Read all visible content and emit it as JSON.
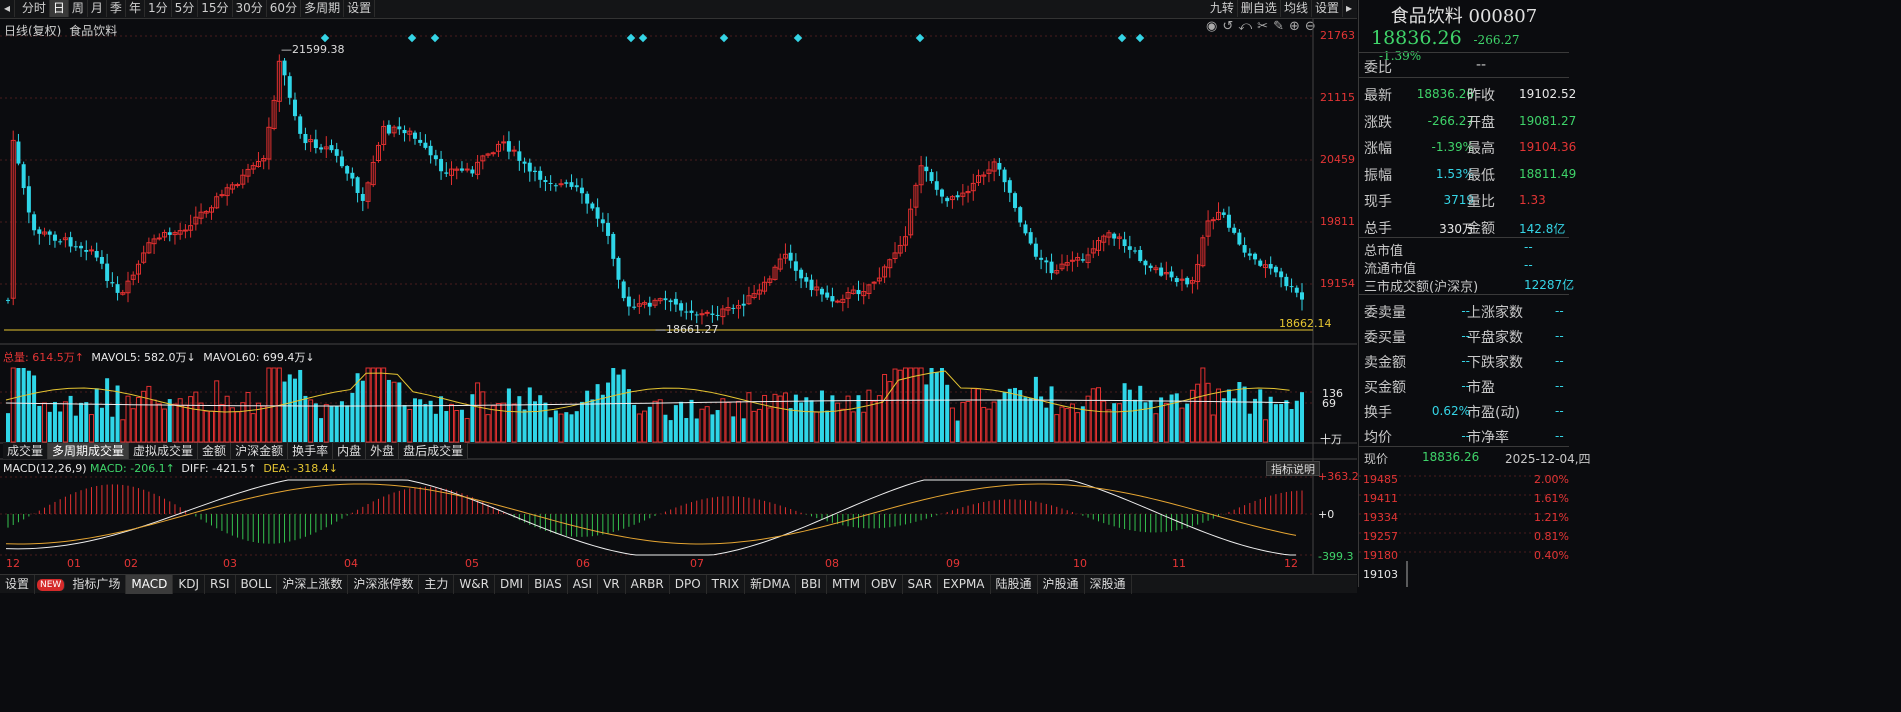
{
  "toolbar": {
    "periods": [
      "分时",
      "日",
      "周",
      "月",
      "季",
      "年",
      "1分",
      "5分",
      "15分",
      "30分",
      "60分",
      "多周期",
      "设置"
    ],
    "active": "日",
    "right_tools": [
      "九转",
      "删自选",
      "均线",
      "设置"
    ]
  },
  "chart_header": {
    "mode": "日线(复权)",
    "name": "食品饮料"
  },
  "price_axis": [
    "21763",
    "21115",
    "20459",
    "19811",
    "19154"
  ],
  "high_label": "21599.38",
  "low_label": "18661.27",
  "last_line_label": "18662.14",
  "volume_legend": {
    "total": "总量: 614.5万↑",
    "mavol5": "MAVOL5: 582.0万↓",
    "mavol60": "MAVOL60: 699.4万↓"
  },
  "volume_axis": [
    "136",
    "69",
    "十万"
  ],
  "volume_tabs": [
    "成交量",
    "多周期成交量",
    "虚拟成交量",
    "金额",
    "沪深金额",
    "换手率",
    "内盘",
    "外盘",
    "盘后成交量"
  ],
  "volume_tab_active": "多周期成交量",
  "macd_legend": {
    "name": "MACD(12,26,9)",
    "macd": "MACD: -206.1↑",
    "diff": "DIFF: -421.5↑",
    "dea": "DEA: -318.4↓"
  },
  "macd_axis": [
    "+363.2",
    "+0",
    "-399.3"
  ],
  "macd_button": "指标说明",
  "month_labels": [
    "12",
    "01",
    "02",
    "03",
    "04",
    "05",
    "06",
    "07",
    "08",
    "09",
    "10",
    "11",
    "12"
  ],
  "indicator_tabs": [
    "设置",
    "NEW",
    "指标广场",
    "MACD",
    "KDJ",
    "RSI",
    "BOLL",
    "沪深上涨数",
    "沪深涨停数",
    "主力",
    "W&R",
    "DMI",
    "BIAS",
    "ASI",
    "VR",
    "ARBR",
    "DPO",
    "TRIX",
    "新DMA",
    "BBI",
    "MTM",
    "OBV",
    "SAR",
    "EXPMA",
    "陆股通",
    "沪股通",
    "深股通"
  ],
  "indicator_active": "MACD",
  "quote": {
    "title": "食品饮料 000807",
    "price": "18836.26",
    "change": "-266.27",
    "pct": "-1.39%",
    "weibi_label": "委比",
    "weibi_value": "--",
    "rows": [
      {
        "l1": "最新",
        "v1": "18836.26",
        "c1": "grn",
        "l2": "昨收",
        "v2": "19102.52",
        "c2": "wht"
      },
      {
        "l1": "涨跌",
        "v1": "-266.27",
        "c1": "grn",
        "l2": "开盘",
        "v2": "19081.27",
        "c2": "grn"
      },
      {
        "l1": "涨幅",
        "v1": "-1.39%",
        "c1": "grn",
        "l2": "最高",
        "v2": "19104.36",
        "c2": "red"
      },
      {
        "l1": "振幅",
        "v1": "1.53%",
        "c1": "cyan",
        "l2": "最低",
        "v2": "18811.49",
        "c2": "grn"
      },
      {
        "l1": "现手",
        "v1": "3719",
        "c1": "cyan",
        "l2": "量比",
        "v2": "1.33",
        "c2": "red"
      },
      {
        "l1": "总手",
        "v1": "330万",
        "c1": "wht",
        "l2": "金额",
        "v2": "142.8亿",
        "c2": "cyan"
      }
    ],
    "mid_rows": [
      {
        "l": "总市值",
        "v": "--"
      },
      {
        "l": "流通市值",
        "v": "--"
      },
      {
        "l": "三市成交额(沪深京)",
        "v": "12287亿"
      }
    ],
    "lower_rows": [
      {
        "l1": "委卖量",
        "v1": "--",
        "l2": "上涨家数",
        "v2": "--"
      },
      {
        "l1": "委买量",
        "v1": "--",
        "l2": "平盘家数",
        "v2": "--"
      },
      {
        "l1": "卖金额",
        "v1": "--",
        "l2": "下跌家数",
        "v2": "--"
      },
      {
        "l1": "买金额",
        "v1": "--",
        "l2": "市盈",
        "v2": "--"
      },
      {
        "l1": "换手",
        "v1": "0.62%",
        "l2": "市盈(动)",
        "v2": "--"
      },
      {
        "l1": "均价",
        "v1": "--",
        "l2": "市净率",
        "v2": "--"
      }
    ],
    "spot_label": "现价",
    "spot_value": "18836.26",
    "spot_date": "2025-12-04,四",
    "mini_left": [
      "19485",
      "19411",
      "19334",
      "19257",
      "19180",
      "19103"
    ],
    "mini_right": [
      "2.00%",
      "1.61%",
      "1.21%",
      "0.81%",
      "0.40%",
      ""
    ]
  },
  "colors": {
    "up": "#e23030",
    "down": "#2fd6e8",
    "bg": "#0b0c0f",
    "grid": "#3a1a1a",
    "yellow": "#e5c532",
    "macd_up": "#e23030",
    "macd_down": "#35c04e"
  }
}
